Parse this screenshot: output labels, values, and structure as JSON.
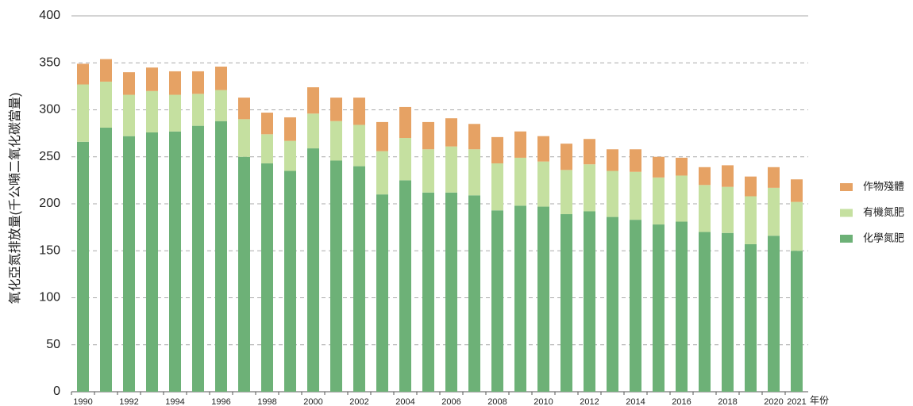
{
  "chart_data": {
    "type": "stacked-bar",
    "ylabel": "氧化亞氮排放量(千公噸二氧化碳當量)",
    "xlabel": "年份",
    "categories": [
      "1990",
      null,
      "1992",
      null,
      "1994",
      null,
      "1996",
      null,
      "1998",
      null,
      "2000",
      null,
      "2002",
      null,
      "2004",
      null,
      "2006",
      null,
      "2008",
      null,
      "2010",
      null,
      "2012",
      null,
      "2014",
      null,
      "2016",
      null,
      "2018",
      null,
      "2020",
      "2021"
    ],
    "series": [
      {
        "name": "化學氮肥",
        "color": "#6db177",
        "values": [
          266,
          281,
          272,
          276,
          277,
          283,
          288,
          250,
          243,
          235,
          259,
          246,
          240,
          210,
          225,
          212,
          212,
          209,
          193,
          198,
          197,
          189,
          192,
          186,
          183,
          178,
          181,
          170,
          169,
          157,
          166,
          150
        ]
      },
      {
        "name": "有機氮肥",
        "color": "#c5e0a0",
        "values": [
          61,
          49,
          44,
          44,
          39,
          34,
          33,
          40,
          31,
          32,
          37,
          42,
          44,
          46,
          45,
          46,
          49,
          49,
          50,
          51,
          48,
          47,
          50,
          49,
          51,
          50,
          49,
          50,
          49,
          51,
          51,
          52
        ]
      },
      {
        "name": "作物殘體",
        "color": "#e6a264",
        "values": [
          22,
          24,
          24,
          25,
          25,
          24,
          25,
          23,
          23,
          25,
          28,
          25,
          29,
          31,
          33,
          29,
          30,
          27,
          28,
          28,
          27,
          28,
          27,
          23,
          24,
          22,
          19,
          19,
          23,
          21,
          22,
          24
        ]
      }
    ],
    "ylim": [
      0,
      400
    ],
    "yticks": [
      0,
      50,
      100,
      150,
      200,
      250,
      300,
      350,
      400
    ],
    "grid": true,
    "legend": "right"
  }
}
